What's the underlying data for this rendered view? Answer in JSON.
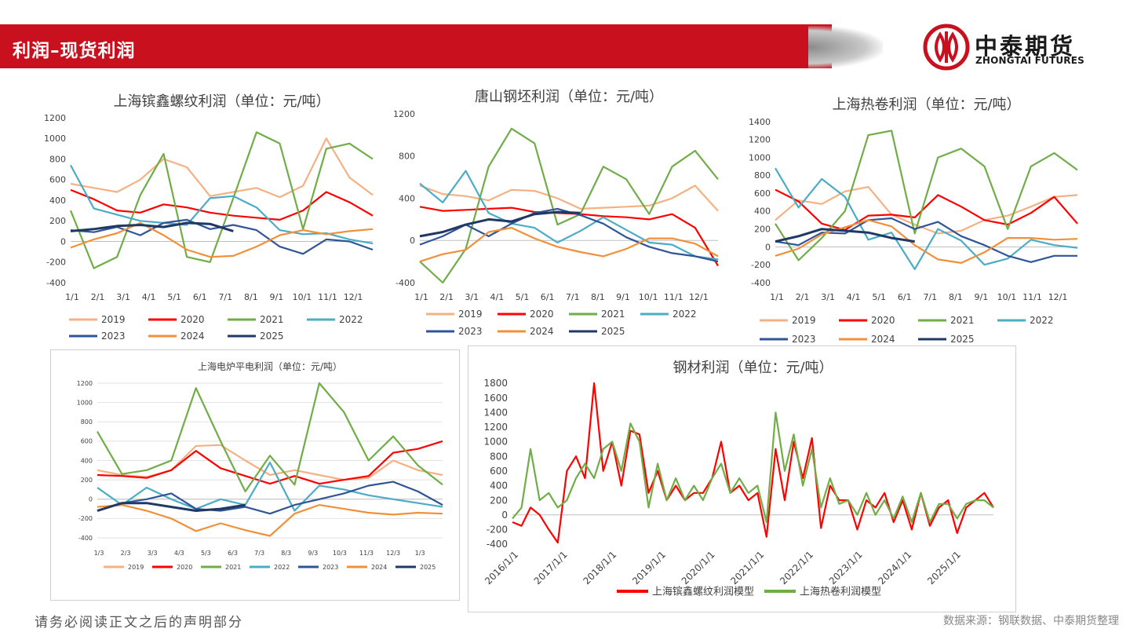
{
  "header": {
    "title": "利润–现货利润"
  },
  "brand": {
    "name_cn": "中泰期货",
    "name_en": "ZHONGTAI FUTURES",
    "color": "#c8101e"
  },
  "footer": {
    "disclaimer": "请务必阅读正文之后的声明部分",
    "source": "数据来源：钢联数据、中泰期货整理"
  },
  "series_colors": {
    "2019": "#f4b183",
    "2020": "#ff0000",
    "2021": "#70ad47",
    "2022": "#4bacc6",
    "2023": "#2f5597",
    "2024": "#f0903a",
    "2025": "#203864"
  },
  "chart_data": [
    {
      "id": "rebar",
      "type": "line",
      "title": "上海镔鑫螺纹利润（单位：元/吨）",
      "xlabels": [
        "1/1",
        "2/1",
        "3/1",
        "4/1",
        "5/1",
        "6/1",
        "7/1",
        "8/1",
        "9/1",
        "10/1",
        "11/1",
        "12/1"
      ],
      "ylim": [
        -400,
        1200
      ],
      "yticks": [
        1200,
        1000,
        800,
        600,
        400,
        200,
        0,
        -200,
        -400
      ],
      "series": [
        {
          "name": "2019",
          "values": [
            560,
            520,
            480,
            600,
            800,
            720,
            440,
            480,
            520,
            430,
            540,
            1000,
            620,
            450
          ]
        },
        {
          "name": "2020",
          "values": [
            500,
            410,
            300,
            280,
            360,
            330,
            280,
            250,
            230,
            210,
            300,
            480,
            380,
            250
          ]
        },
        {
          "name": "2021",
          "values": [
            300,
            -260,
            -150,
            450,
            850,
            -150,
            -200,
            420,
            1060,
            950,
            120,
            900,
            950,
            800
          ]
        },
        {
          "name": "2022",
          "values": [
            740,
            320,
            260,
            200,
            180,
            160,
            420,
            440,
            330,
            110,
            70,
            80,
            20,
            -20
          ]
        },
        {
          "name": "2023",
          "values": [
            110,
            90,
            140,
            60,
            180,
            210,
            120,
            160,
            110,
            -50,
            -120,
            20,
            0,
            -80
          ]
        },
        {
          "name": "2024",
          "values": [
            -60,
            20,
            80,
            180,
            60,
            -80,
            -150,
            -140,
            -50,
            60,
            110,
            70,
            100,
            120
          ]
        },
        {
          "name": "2025",
          "values": [
            100,
            120,
            150,
            160,
            140,
            180,
            170,
            100
          ]
        }
      ]
    },
    {
      "id": "billet",
      "type": "line",
      "title": "唐山钢坯利润（单位：元/吨）",
      "xlabels": [
        "1/1",
        "2/1",
        "3/1",
        "4/1",
        "5/1",
        "6/1",
        "7/1",
        "8/1",
        "9/1",
        "10/1",
        "11/1",
        "12/1"
      ],
      "ylim": [
        -400,
        1200
      ],
      "yticks": [
        1200,
        800,
        400,
        0,
        -400
      ],
      "series": [
        {
          "name": "2019",
          "values": [
            520,
            440,
            420,
            380,
            480,
            470,
            400,
            300,
            310,
            320,
            330,
            400,
            520,
            280
          ]
        },
        {
          "name": "2020",
          "values": [
            320,
            280,
            290,
            300,
            310,
            270,
            260,
            250,
            230,
            220,
            200,
            250,
            120,
            -240
          ]
        },
        {
          "name": "2021",
          "values": [
            -200,
            -420,
            -80,
            700,
            1060,
            920,
            150,
            250,
            700,
            580,
            250,
            700,
            850,
            580
          ]
        },
        {
          "name": "2022",
          "values": [
            540,
            360,
            660,
            260,
            160,
            120,
            -20,
            90,
            220,
            100,
            -20,
            -40,
            -150,
            -180
          ]
        },
        {
          "name": "2023",
          "values": [
            -40,
            40,
            150,
            40,
            160,
            260,
            300,
            240,
            160,
            30,
            -60,
            -120,
            -150,
            -200
          ]
        },
        {
          "name": "2024",
          "values": [
            -200,
            -130,
            -90,
            80,
            120,
            20,
            -60,
            -110,
            -150,
            -80,
            20,
            20,
            -30,
            -150
          ]
        },
        {
          "name": "2025",
          "values": [
            40,
            80,
            150,
            200,
            180,
            250,
            270,
            260
          ]
        }
      ]
    },
    {
      "id": "hrc",
      "type": "line",
      "title": "上海热卷利润（单位：元/吨）",
      "xlabels": [
        "1/1",
        "2/1",
        "3/1",
        "4/1",
        "5/1",
        "6/1",
        "7/1",
        "8/1",
        "9/1",
        "10/1",
        "11/1",
        "12/1"
      ],
      "ylim": [
        -400,
        1400
      ],
      "yticks": [
        1400,
        1200,
        1000,
        800,
        600,
        400,
        200,
        0,
        -200,
        -400
      ],
      "series": [
        {
          "name": "2019",
          "values": [
            300,
            520,
            480,
            620,
            670,
            360,
            250,
            150,
            180,
            300,
            350,
            450,
            560,
            580
          ]
        },
        {
          "name": "2020",
          "values": [
            640,
            510,
            260,
            190,
            350,
            360,
            330,
            580,
            450,
            300,
            250,
            380,
            560,
            260
          ]
        },
        {
          "name": "2021",
          "values": [
            260,
            -150,
            100,
            400,
            1250,
            1300,
            150,
            1000,
            1100,
            900,
            200,
            900,
            1050,
            860
          ]
        },
        {
          "name": "2022",
          "values": [
            880,
            440,
            760,
            560,
            80,
            160,
            -250,
            200,
            70,
            -200,
            -130,
            80,
            20,
            -10
          ]
        },
        {
          "name": "2023",
          "values": [
            60,
            20,
            160,
            150,
            300,
            320,
            200,
            280,
            120,
            20,
            -100,
            -170,
            -100,
            -100
          ]
        },
        {
          "name": "2024",
          "values": [
            -100,
            -20,
            140,
            220,
            300,
            230,
            20,
            -140,
            -180,
            -60,
            100,
            100,
            80,
            90
          ]
        },
        {
          "name": "2025",
          "values": [
            60,
            120,
            200,
            180,
            160,
            100,
            60
          ]
        }
      ]
    },
    {
      "id": "eaf",
      "type": "line",
      "title": "上海电炉平电利润（单位：元/吨）",
      "xlabels": [
        "1/3",
        "2/3",
        "3/3",
        "4/3",
        "5/3",
        "6/3",
        "7/3",
        "8/3",
        "9/3",
        "10/3",
        "11/3",
        "12/3",
        "1/3"
      ],
      "ylim": [
        -400,
        1200
      ],
      "yticks": [
        1200,
        1000,
        800,
        600,
        400,
        200,
        0,
        -200,
        -400
      ],
      "series": [
        {
          "name": "2019",
          "values": [
            300,
            250,
            230,
            300,
            550,
            560,
            400,
            250,
            300,
            250,
            200,
            220,
            400,
            300,
            250
          ]
        },
        {
          "name": "2020",
          "values": [
            250,
            240,
            220,
            300,
            500,
            320,
            240,
            160,
            240,
            160,
            200,
            240,
            480,
            520,
            600
          ]
        },
        {
          "name": "2021",
          "values": [
            700,
            260,
            300,
            400,
            1150,
            600,
            80,
            450,
            150,
            1200,
            900,
            400,
            650,
            350,
            150
          ]
        },
        {
          "name": "2022",
          "values": [
            120,
            -60,
            120,
            0,
            -100,
            0,
            -60,
            380,
            -120,
            140,
            100,
            40,
            0,
            -40,
            -80
          ]
        },
        {
          "name": "2023",
          "values": [
            -120,
            -40,
            0,
            60,
            -100,
            -120,
            -80,
            -150,
            -60,
            0,
            60,
            140,
            180,
            80,
            -60
          ]
        },
        {
          "name": "2024",
          "values": [
            -80,
            -60,
            -120,
            -200,
            -330,
            -250,
            -320,
            -380,
            -150,
            -60,
            -100,
            -140,
            -160,
            -140,
            -150
          ]
        },
        {
          "name": "2025",
          "values": [
            -120,
            -40,
            -40,
            -80,
            -120,
            -100,
            -60
          ]
        }
      ]
    },
    {
      "id": "steel",
      "type": "line",
      "title": "钢材利润（单位：元/吨）",
      "xlabels": [
        "2016/1/1",
        "2017/1/1",
        "2018/1/1",
        "2019/1/1",
        "2020/1/1",
        "2021/1/1",
        "2022/1/1",
        "2023/1/1",
        "2024/1/1",
        "2025/1/1"
      ],
      "ylim": [
        -400,
        1800
      ],
      "yticks": [
        1800,
        1600,
        1400,
        1200,
        1000,
        800,
        600,
        400,
        200,
        0,
        -200,
        -400
      ],
      "series": [
        {
          "name": "上海镔鑫螺纹利润模型",
          "color": "#ff0000",
          "values": [
            -100,
            -150,
            100,
            0,
            -200,
            -380,
            600,
            800,
            500,
            1820,
            600,
            1000,
            400,
            1150,
            1100,
            300,
            600,
            200,
            400,
            200,
            300,
            300,
            500,
            1000,
            300,
            400,
            200,
            300,
            -300,
            900,
            200,
            1000,
            500,
            1050,
            -180,
            400,
            200,
            200,
            -200,
            200,
            100,
            300,
            -100,
            200,
            -200,
            300,
            -150,
            100,
            200,
            -250,
            100,
            200,
            300,
            100
          ]
        },
        {
          "name": "上海热卷利润模型",
          "color": "#70ad47",
          "values": [
            -50,
            100,
            900,
            200,
            300,
            100,
            200,
            500,
            700,
            500,
            900,
            1000,
            600,
            1250,
            1000,
            100,
            700,
            200,
            500,
            200,
            400,
            200,
            500,
            700,
            300,
            500,
            300,
            400,
            -100,
            1400,
            600,
            1100,
            400,
            900,
            100,
            500,
            150,
            200,
            0,
            300,
            0,
            200,
            -50,
            250,
            -100,
            300,
            -100,
            150,
            150,
            -50,
            150,
            200,
            200,
            100
          ]
        }
      ]
    }
  ]
}
